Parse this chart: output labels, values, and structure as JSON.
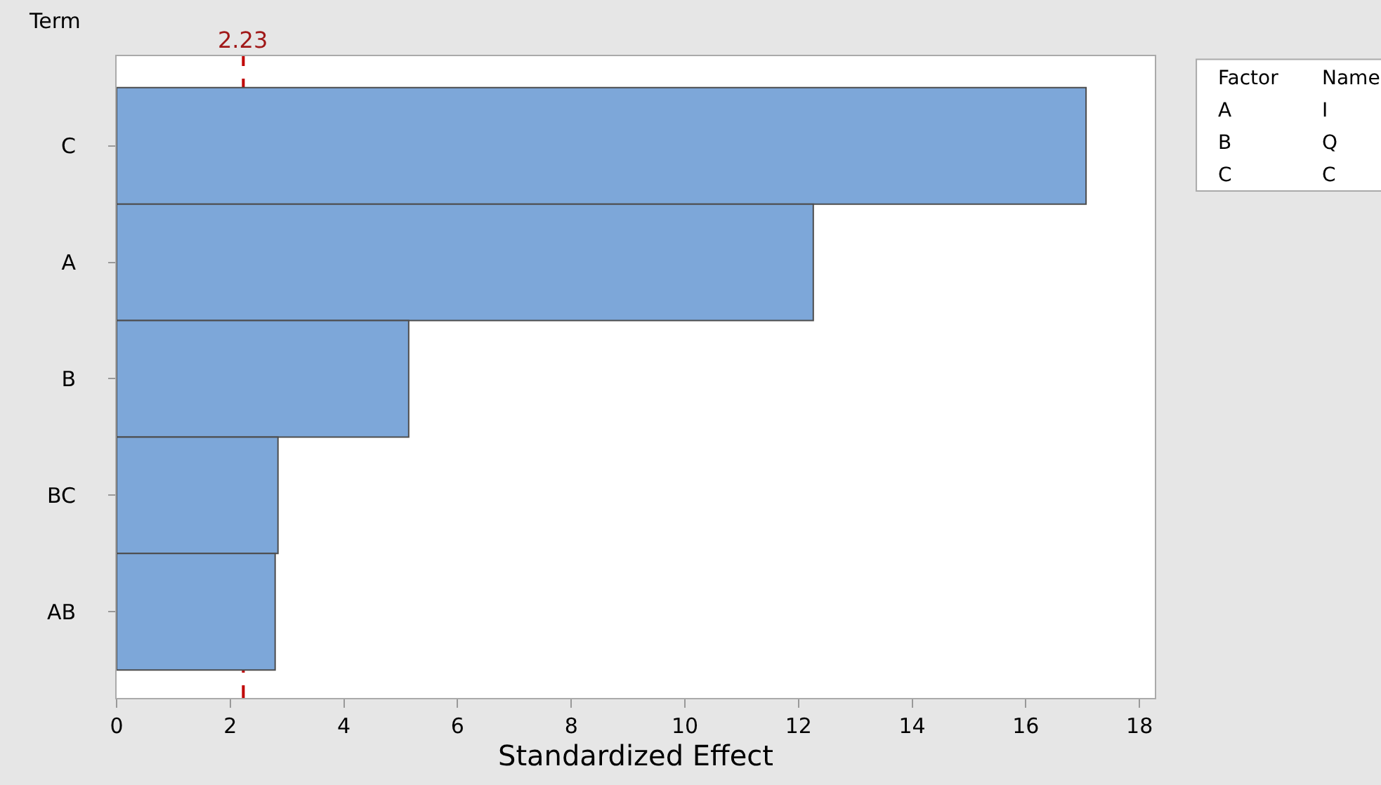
{
  "chart_data": {
    "type": "bar",
    "orientation": "horizontal",
    "ylabel": "Term",
    "xlabel": "Standardized Effect",
    "categories": [
      "C",
      "A",
      "B",
      "BC",
      "AB"
    ],
    "values": [
      17.06,
      12.26,
      5.14,
      2.84,
      2.79
    ],
    "color": "#7da7d9",
    "xlim": [
      0,
      18.27
    ],
    "xticks": [
      0,
      2,
      4,
      6,
      8,
      10,
      12,
      14,
      16,
      18
    ],
    "legend": false,
    "ref_lines": [
      {
        "axis": "x",
        "value": 2.23,
        "label": "2.23",
        "color": "#c00000",
        "line_style": "dashed"
      }
    ],
    "annotations": [
      "Factor",
      "Name",
      "A",
      "I",
      "B",
      "Q",
      "C",
      "C"
    ]
  }
}
